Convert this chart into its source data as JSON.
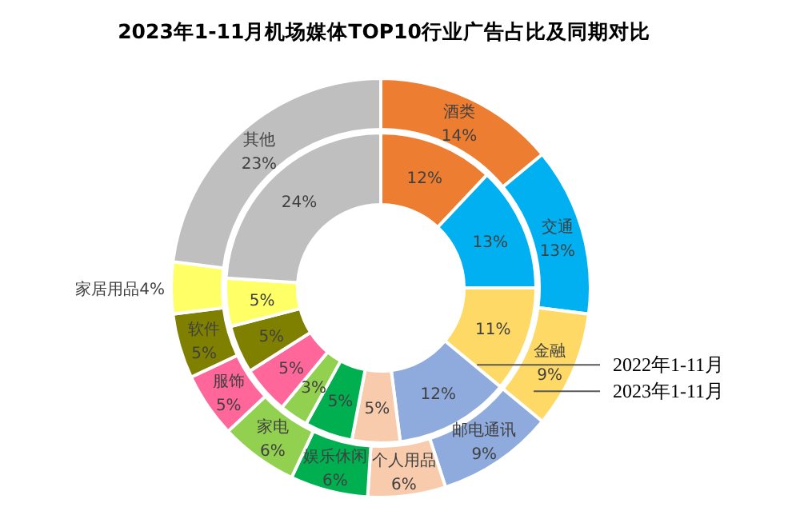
{
  "chart_data": {
    "type": "donut",
    "title": "2023年1-11月机场媒体TOP10行业广告占比及同期对比",
    "categories": [
      "酒类",
      "交通",
      "金融",
      "邮电通讯",
      "个人用品",
      "娱乐休闲",
      "家电",
      "服饰",
      "软件",
      "家居用品",
      "其他"
    ],
    "colors": [
      "#ed7d31",
      "#00b0f0",
      "#ffd966",
      "#8faadc",
      "#f8cbad",
      "#00b050",
      "#92d050",
      "#ff6699",
      "#7f7f00",
      "#ffff66",
      "#bfbfbf"
    ],
    "series": [
      {
        "name": "2022年1-11月",
        "values": [
          12,
          13,
          11,
          12,
          5,
          5,
          3,
          5,
          5,
          5,
          24
        ],
        "value_labels": [
          "12%",
          "13%",
          "11%",
          "12%",
          "5%",
          "5%",
          "3%",
          "5%",
          "5%",
          "5%",
          "24%"
        ]
      },
      {
        "name": "2023年1-11月",
        "values": [
          14,
          13,
          9,
          9,
          6,
          6,
          6,
          5,
          5,
          4,
          23
        ],
        "value_labels": [
          "14%",
          "13%",
          "9%",
          "9%",
          "6%",
          "6%",
          "6%",
          "5%",
          "5%",
          "4%",
          "23%"
        ]
      }
    ],
    "legend": "right"
  }
}
